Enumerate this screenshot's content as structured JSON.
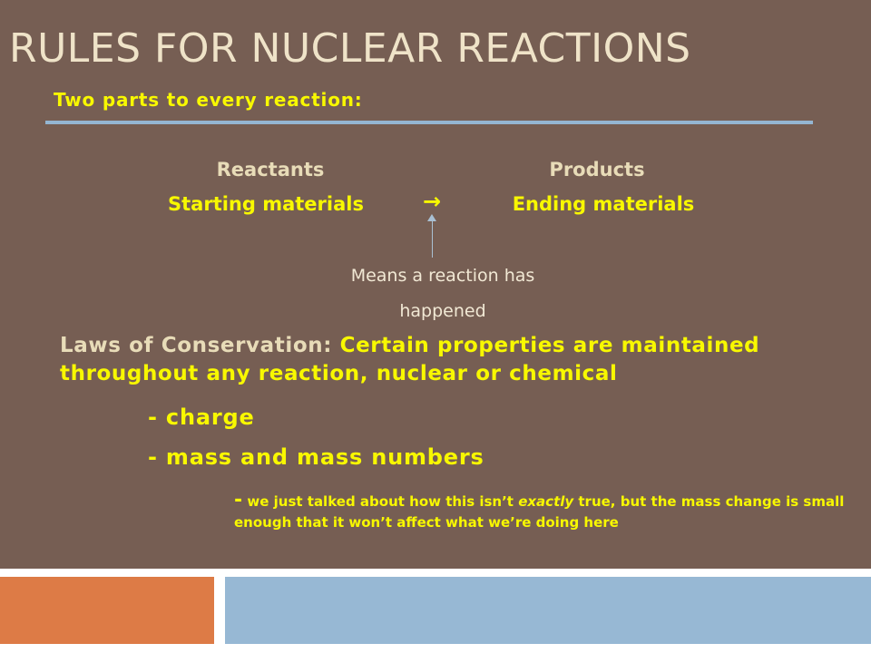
{
  "slide": {
    "title": "RULES FOR NUCLEAR REACTIONS",
    "subtitle": "Two parts to every reaction:",
    "reactants": {
      "heading": "Reactants",
      "desc": "Starting materials"
    },
    "products": {
      "heading": "Products",
      "desc": "Ending materials"
    },
    "arrow_glyph": "→",
    "arrow_note": "Means a reaction has happened",
    "laws": {
      "label": "Laws of Conservation:",
      "text": "Certain properties are maintained throughout any reaction, nuclear or chemical"
    },
    "bullets": [
      "- charge",
      "- mass and mass numbers"
    ],
    "aside": {
      "dash": "-",
      "before": "we just talked about how this isn’t ",
      "emph": "exactly",
      "after": " true, but the mass change is small enough that it won’t affect what we’re doing here"
    }
  },
  "colors": {
    "background": "#765e53",
    "title": "#efe3c8",
    "highlight": "#f8f800",
    "rule": "#94b6d2",
    "footer_orange": "#dd7b46",
    "footer_blue": "#97b8d4"
  }
}
